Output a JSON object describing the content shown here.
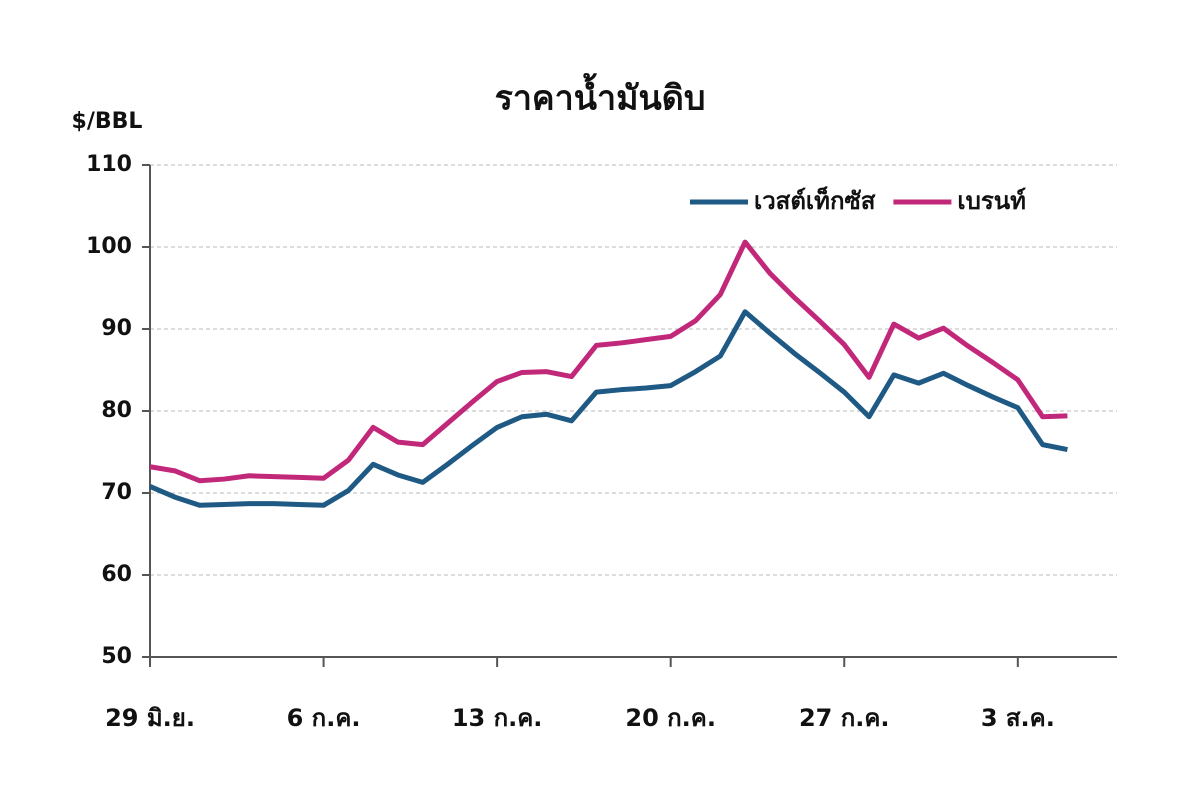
{
  "chart_data": {
    "type": "line",
    "title": "ราคาน้ำมันดิบ",
    "y_label": "$/BBL",
    "x": [
      0,
      1,
      2,
      3,
      4,
      5,
      6,
      7,
      8,
      9,
      10,
      11,
      12,
      13,
      14,
      15,
      16,
      17,
      18,
      19,
      20,
      21,
      22,
      23,
      24,
      25,
      26,
      27,
      28,
      29,
      30,
      31,
      32,
      33,
      34,
      35,
      36,
      37
    ],
    "xlim": [
      0,
      39
    ],
    "xticks": [
      {
        "value": 0,
        "label": "29 มิ.ย."
      },
      {
        "value": 7,
        "label": "6 ก.ค."
      },
      {
        "value": 14,
        "label": "13 ก.ค."
      },
      {
        "value": 21,
        "label": "20 ก.ค."
      },
      {
        "value": 28,
        "label": "27 ก.ค."
      },
      {
        "value": 35,
        "label": "3 ส.ค."
      }
    ],
    "ylim": [
      50,
      110
    ],
    "yticks": [
      50,
      60,
      70,
      80,
      90,
      100,
      110
    ],
    "grid": true,
    "legend": "upper right",
    "series": [
      {
        "name": "เวสต์เท็กซัส",
        "color": "#1f5a85",
        "values": [
          70.8,
          69.5,
          68.5,
          68.6,
          68.7,
          68.7,
          68.6,
          68.5,
          70.3,
          73.5,
          72.2,
          71.3,
          73.5,
          75.8,
          78,
          79.3,
          79.6,
          78.8,
          82.3,
          82.6,
          82.8,
          83.1,
          84.8,
          86.7,
          92.1,
          89.5,
          87,
          84.7,
          82.3,
          79.3,
          84.4,
          83.4,
          84.6,
          83.1,
          81.7,
          80.4,
          75.9,
          75.3
        ]
      },
      {
        "name": "เบรนท์",
        "color": "#c2287a",
        "values": [
          73.2,
          72.7,
          71.5,
          71.7,
          72.1,
          72.0,
          71.9,
          71.8,
          74.0,
          78.0,
          76.2,
          75.9,
          78.5,
          81.1,
          83.6,
          84.7,
          84.8,
          84.2,
          88.0,
          88.3,
          88.7,
          89.1,
          91.0,
          94.2,
          100.6,
          96.8,
          93.8,
          91.0,
          88.1,
          84.1,
          90.6,
          88.9,
          90.1,
          87.9,
          85.9,
          83.8,
          79.3,
          79.4
        ]
      }
    ]
  }
}
